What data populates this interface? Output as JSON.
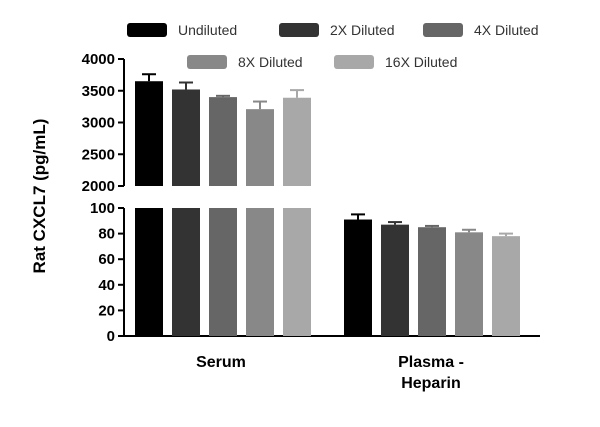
{
  "chart_data": {
    "type": "bar",
    "ylabel": "Rat CXCL7 (pg/mL)",
    "categories": [
      "Serum",
      "Plasma - Heparin"
    ],
    "category_lines": [
      [
        "Serum"
      ],
      [
        "Plasma -",
        "Heparin"
      ]
    ],
    "axis_break": true,
    "upper_segment": {
      "ylim": [
        2000,
        4000
      ],
      "ticks": [
        "2000",
        "2500",
        "3000",
        "3500",
        "4000"
      ]
    },
    "lower_segment": {
      "ylim": [
        0,
        100
      ],
      "ticks": [
        "0",
        "20",
        "40",
        "60",
        "80",
        "100"
      ]
    },
    "legend_placement": "top",
    "series": [
      {
        "name": "Undiluted",
        "color": "#000000",
        "values": [
          3650,
          91
        ],
        "errors": [
          110,
          4
        ]
      },
      {
        "name": "2X Diluted",
        "color": "#333333",
        "values": [
          3520,
          87
        ],
        "errors": [
          110,
          2
        ]
      },
      {
        "name": "4X Diluted",
        "color": "#666666",
        "values": [
          3400,
          85
        ],
        "errors": [
          20,
          1
        ]
      },
      {
        "name": "8X Diluted",
        "color": "#888888",
        "values": [
          3210,
          81
        ],
        "errors": [
          120,
          2
        ]
      },
      {
        "name": "16X Diluted",
        "color": "#a8a8a8",
        "values": [
          3390,
          78
        ],
        "errors": [
          120,
          2
        ]
      }
    ]
  }
}
